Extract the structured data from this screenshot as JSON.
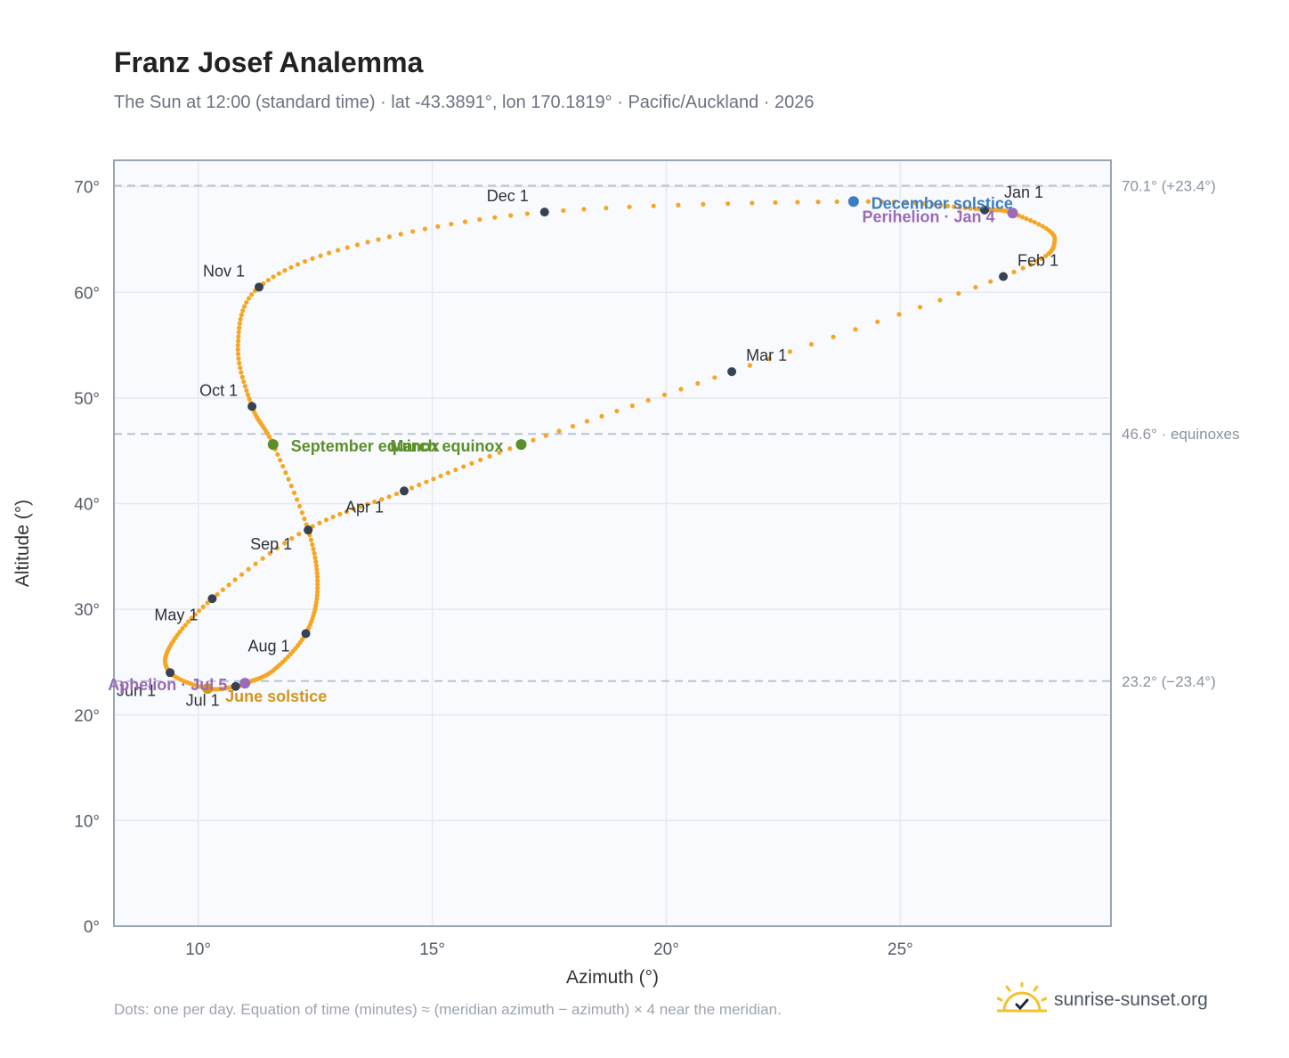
{
  "header": {
    "title": "Franz Josef Analemma",
    "subtitle": "The Sun at 12:00 (standard time) · lat -43.3891°, lon 170.1819° · Pacific/Auckland · 2026"
  },
  "footer": {
    "note": "Dots: one per day. Equation of time (minutes) ≈ (meridian azimuth − azimuth) × 4 near the meridian.",
    "brand": "sunrise-sunset.org"
  },
  "colors": {
    "curve": "#f5a623",
    "month_marker": "#374151",
    "equinox": "#5a8f29",
    "june_solstice": "#d4951a",
    "december_solstice": "#3b7dc4",
    "apsis": "#9b6bb8",
    "plot_bg": "#f8fafd",
    "grid": "#e5e9f0",
    "frame": "#9aa5b4",
    "reference_line": "#b9c4d1"
  },
  "chart_data": {
    "type": "scatter",
    "xlabel": "Azimuth (°)",
    "ylabel": "Altitude (°)",
    "xlim": [
      8.2,
      29.5
    ],
    "ylim": [
      0,
      72.5
    ],
    "x_ticks": [
      10,
      15,
      20,
      25
    ],
    "x_tick_labels": [
      "10°",
      "15°",
      "20°",
      "25°"
    ],
    "y_ticks": [
      0,
      10,
      20,
      30,
      40,
      50,
      60,
      70
    ],
    "y_tick_labels": [
      "0°",
      "10°",
      "20°",
      "30°",
      "40°",
      "50°",
      "60°",
      "70°"
    ],
    "grid": true,
    "reference_lines": [
      {
        "y": 70.1,
        "label": "70.1° (+23.4°)"
      },
      {
        "y": 46.6,
        "label": "46.6° · equinoxes"
      },
      {
        "y": 23.2,
        "label": "23.2° (−23.4°)"
      }
    ],
    "path_points": [
      {
        "date": "Jan 1",
        "x": 26.8,
        "y": 67.8
      },
      {
        "date": "Jan 4",
        "x": 27.4,
        "y": 67.5
      },
      {
        "date": "Jan 18",
        "x": 28.3,
        "y": 65.0
      },
      {
        "date": "Feb 1",
        "x": 27.2,
        "y": 61.5
      },
      {
        "date": "Mar 1",
        "x": 21.4,
        "y": 52.5
      },
      {
        "date": "Mar 20",
        "x": 16.9,
        "y": 45.6
      },
      {
        "date": "Apr 1",
        "x": 14.4,
        "y": 41.2
      },
      {
        "date": "Apr 15",
        "x": 12.3,
        "y": 37.5
      },
      {
        "date": "May 1",
        "x": 10.3,
        "y": 31.0
      },
      {
        "date": "May 15",
        "x": 9.4,
        "y": 26.5
      },
      {
        "date": "Jun 1",
        "x": 9.4,
        "y": 24.0
      },
      {
        "date": "Jun 21",
        "x": 10.2,
        "y": 22.5
      },
      {
        "date": "Jul 1",
        "x": 10.8,
        "y": 22.7
      },
      {
        "date": "Jul 5",
        "x": 11.0,
        "y": 23.0
      },
      {
        "date": "Jul 15",
        "x": 11.6,
        "y": 24.2
      },
      {
        "date": "Aug 1",
        "x": 12.3,
        "y": 27.7
      },
      {
        "date": "Aug 15",
        "x": 12.55,
        "y": 32.0
      },
      {
        "date": "Sep 1",
        "x": 12.35,
        "y": 37.5
      },
      {
        "date": "Sep 23",
        "x": 11.6,
        "y": 45.6
      },
      {
        "date": "Oct 1",
        "x": 11.15,
        "y": 49.2
      },
      {
        "date": "Oct 15",
        "x": 10.85,
        "y": 55.0
      },
      {
        "date": "Nov 1",
        "x": 11.3,
        "y": 60.5
      },
      {
        "date": "Nov 15",
        "x": 13.4,
        "y": 64.5
      },
      {
        "date": "Dec 1",
        "x": 17.4,
        "y": 67.6
      },
      {
        "date": "Dec 21",
        "x": 24.0,
        "y": 68.6
      },
      {
        "date": "Dec 31",
        "x": 26.6,
        "y": 67.9
      }
    ],
    "month_markers": [
      {
        "label": "Jan 1",
        "x": 26.8,
        "y": 67.8
      },
      {
        "label": "Feb 1",
        "x": 27.2,
        "y": 61.5
      },
      {
        "label": "Mar 1",
        "x": 21.4,
        "y": 52.5
      },
      {
        "label": "Apr 1",
        "x": 14.4,
        "y": 41.2
      },
      {
        "label": "May 1",
        "x": 10.3,
        "y": 31.0
      },
      {
        "label": "Jun 1",
        "x": 9.4,
        "y": 24.0
      },
      {
        "label": "Jul 1",
        "x": 10.8,
        "y": 22.7
      },
      {
        "label": "Aug 1",
        "x": 12.3,
        "y": 27.7
      },
      {
        "label": "Sep 1",
        "x": 12.35,
        "y": 37.5
      },
      {
        "label": "Oct 1",
        "x": 11.15,
        "y": 49.2
      },
      {
        "label": "Nov 1",
        "x": 11.3,
        "y": 60.5
      },
      {
        "label": "Dec 1",
        "x": 17.4,
        "y": 67.6
      }
    ],
    "events": [
      {
        "label": "December solstice",
        "x": 24.0,
        "y": 68.6,
        "color": "#3b7dc4"
      },
      {
        "label": "Perihelion · Jan 4",
        "x": 27.4,
        "y": 67.5,
        "color": "#9b6bb8"
      },
      {
        "label": "September equinox",
        "x": 11.6,
        "y": 45.6,
        "color": "#5a8f29"
      },
      {
        "label": "March equinox",
        "x": 16.9,
        "y": 45.6,
        "color": "#5a8f29"
      },
      {
        "label": "June solstice",
        "x": 10.2,
        "y": 22.5,
        "color": "#d4951a"
      },
      {
        "label": "Aphelion · Jul 5",
        "x": 11.0,
        "y": 23.0,
        "color": "#9b6bb8"
      }
    ]
  }
}
